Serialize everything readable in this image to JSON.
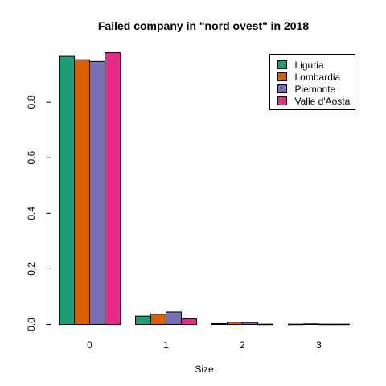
{
  "chart_data": {
    "type": "bar",
    "title": "Failed company in \"nord ovest\" in 2018",
    "xlabel": "Size",
    "ylabel": "",
    "categories": [
      "0",
      "1",
      "2",
      "3"
    ],
    "ylim": [
      0,
      1
    ],
    "yticks": [
      "0.0",
      "0.2",
      "0.4",
      "0.6",
      "0.8"
    ],
    "legend_position": "top-right",
    "series": [
      {
        "name": "Liguria",
        "color": "#1b9e77",
        "values": [
          0.965,
          0.03,
          0.003,
          0.001
        ]
      },
      {
        "name": "Lombardia",
        "color": "#d95f02",
        "values": [
          0.953,
          0.037,
          0.008,
          0.002
        ]
      },
      {
        "name": "Piemonte",
        "color": "#7570b3",
        "values": [
          0.947,
          0.045,
          0.007,
          0.001
        ]
      },
      {
        "name": "Valle d'Aosta",
        "color": "#e7298a",
        "values": [
          0.978,
          0.02,
          0.001,
          0.001
        ]
      }
    ]
  }
}
